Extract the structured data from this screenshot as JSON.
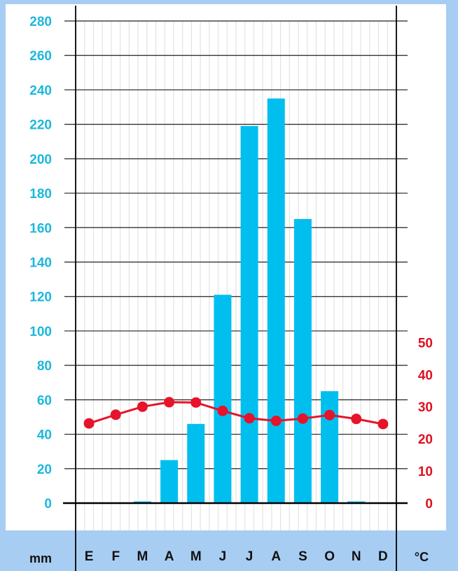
{
  "chart_data": {
    "type": "bar",
    "categories": [
      "E",
      "F",
      "M",
      "A",
      "M",
      "J",
      "J",
      "A",
      "S",
      "O",
      "N",
      "D"
    ],
    "series": [
      {
        "axis": "left",
        "chart_type": "bar",
        "color": "#00bfef",
        "values": [
          0,
          0,
          1,
          25,
          46,
          121,
          219,
          235,
          165,
          65,
          1,
          0
        ]
      },
      {
        "axis": "right",
        "chart_type": "line",
        "color": "#e6132a",
        "values": [
          24.8,
          27.5,
          30.0,
          31.4,
          31.3,
          28.7,
          26.4,
          25.6,
          26.3,
          27.4,
          26.2,
          24.6
        ]
      }
    ],
    "y_left": {
      "unit": "mm",
      "ylim": [
        0,
        280
      ],
      "ticks": [
        0,
        20,
        40,
        60,
        80,
        100,
        120,
        140,
        160,
        180,
        200,
        220,
        240,
        260,
        280
      ],
      "color": "#1cb8dc"
    },
    "y_right": {
      "unit": "°C",
      "ylim": [
        -10,
        140
      ],
      "ticks": [
        0,
        10,
        20,
        30,
        40,
        50
      ],
      "color": "#e01020"
    },
    "grid": true,
    "background_color": "#ffffff",
    "frame_color": "#a8cdf2"
  }
}
